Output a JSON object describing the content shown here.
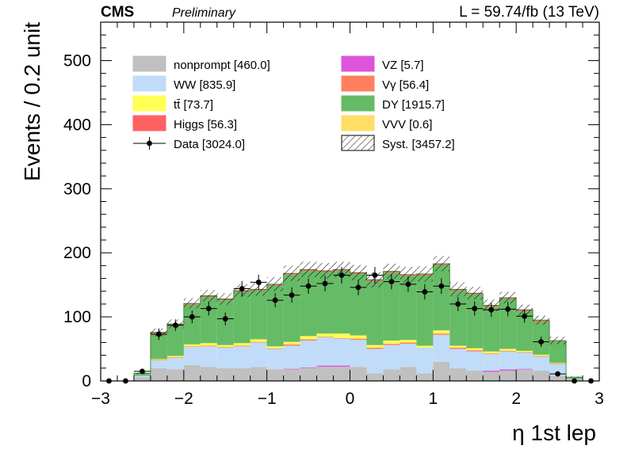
{
  "header": {
    "experiment": "CMS",
    "status": "Preliminary",
    "lumi": "L = 59.74/fb (13 TeV)"
  },
  "chart_data": {
    "type": "bar",
    "stacked": true,
    "xlabel": "η 1st lep",
    "ylabel": "Events / 0.2 unit",
    "xlim": [
      -3,
      3
    ],
    "ylim": [
      0,
      560
    ],
    "x_ticks": [
      -3,
      -2,
      -1,
      0,
      1,
      2,
      3
    ],
    "y_ticks": [
      0,
      100,
      200,
      300,
      400,
      500
    ],
    "legend_position": "top",
    "bin_edges": [
      -3.0,
      -2.8,
      -2.6,
      -2.4,
      -2.2,
      -2.0,
      -1.8,
      -1.6,
      -1.4,
      -1.2,
      -1.0,
      -0.8,
      -0.6,
      -0.4,
      -0.2,
      0.0,
      0.2,
      0.4,
      0.6,
      0.8,
      1.0,
      1.2,
      1.4,
      1.6,
      1.8,
      2.0,
      2.2,
      2.4,
      2.6,
      2.8,
      3.0
    ],
    "legend": [
      {
        "key": "nonprompt",
        "label": "nonprompt [460.0]",
        "color": "#c0c0c0",
        "kind": "fill"
      },
      {
        "key": "VZ",
        "label": "VZ [5.7]",
        "color": "#dd55dd",
        "kind": "fill"
      },
      {
        "key": "WW",
        "label": "WW [835.9]",
        "color": "#c0dcf8",
        "kind": "fill"
      },
      {
        "key": "Vg",
        "label": "Vγ [56.4]",
        "color": "#ff8060",
        "kind": "fill"
      },
      {
        "key": "tt",
        "label": "tt̄ [73.7]",
        "color": "#ffff55",
        "kind": "fill"
      },
      {
        "key": "DY",
        "label": "DY [1915.7]",
        "color": "#66bb66",
        "kind": "fill"
      },
      {
        "key": "Higgs",
        "label": "Higgs [56.3]",
        "color": "#ff6060",
        "kind": "fill"
      },
      {
        "key": "VVV",
        "label": "VVV [0.6]",
        "color": "#ffdd66",
        "kind": "fill"
      },
      {
        "key": "Data",
        "label": "Data [3024.0]",
        "color": "#000000",
        "kind": "marker"
      },
      {
        "key": "Syst",
        "label": "Syst. [3457.2]",
        "color": "#000000",
        "kind": "hatch"
      }
    ],
    "stack_order": [
      "nonprompt",
      "VZ",
      "WW",
      "Vg",
      "tt",
      "DY",
      "VVV",
      "Higgs"
    ],
    "series": [
      {
        "name": "nonprompt",
        "color": "#c0c0c0",
        "values": [
          0,
          0,
          6,
          20,
          18,
          25,
          22,
          20,
          20,
          22,
          18,
          18,
          20,
          22,
          22,
          22,
          12,
          18,
          22,
          12,
          30,
          20,
          16,
          14,
          16,
          18,
          16,
          8,
          2,
          0
        ]
      },
      {
        "name": "VZ",
        "color": "#dd55dd",
        "values": [
          0,
          0,
          0,
          0,
          0,
          0,
          0,
          0,
          0,
          0,
          0,
          1,
          1,
          2,
          2,
          0,
          0,
          0,
          0,
          0,
          0,
          0,
          0,
          2,
          2,
          1,
          0,
          0,
          0,
          0
        ]
      },
      {
        "name": "WW",
        "color": "#c0dcf8",
        "values": [
          0,
          0,
          2,
          12,
          18,
          28,
          32,
          32,
          34,
          38,
          32,
          36,
          42,
          44,
          42,
          42,
          38,
          38,
          36,
          40,
          42,
          30,
          30,
          26,
          28,
          25,
          22,
          18,
          1,
          0
        ]
      },
      {
        "name": "Vg",
        "color": "#ff8060",
        "values": [
          0,
          0,
          0,
          1,
          1,
          1,
          1,
          1,
          1,
          1,
          1,
          2,
          2,
          1,
          1,
          2,
          2,
          2,
          2,
          0,
          2,
          2,
          2,
          1,
          1,
          1,
          1,
          1,
          0,
          0
        ]
      },
      {
        "name": "tt",
        "color": "#ffff55",
        "values": [
          0,
          0,
          0,
          1,
          2,
          3,
          4,
          3,
          4,
          4,
          3,
          4,
          5,
          5,
          7,
          5,
          4,
          5,
          4,
          3,
          5,
          3,
          3,
          3,
          3,
          2,
          2,
          1,
          0,
          0
        ]
      },
      {
        "name": "DY",
        "color": "#66bb66",
        "values": [
          0,
          0,
          4,
          40,
          48,
          62,
          72,
          70,
          80,
          76,
          95,
          105,
          102,
          96,
          98,
          96,
          100,
          106,
          100,
          110,
          102,
          86,
          84,
          70,
          78,
          62,
          52,
          34,
          3,
          0
        ]
      },
      {
        "name": "VVV",
        "color": "#ffdd66",
        "values": [
          0,
          0,
          0,
          0,
          0,
          0,
          0,
          0,
          0,
          0,
          0,
          0,
          0,
          0,
          0,
          0,
          0,
          0,
          0,
          0,
          0,
          0,
          0,
          0,
          0,
          0,
          0,
          0,
          0,
          0
        ]
      },
      {
        "name": "Higgs",
        "color": "#ff6060",
        "values": [
          0,
          0,
          0,
          2,
          2,
          2,
          2,
          2,
          2,
          2,
          2,
          2,
          2,
          2,
          2,
          2,
          2,
          2,
          2,
          2,
          2,
          2,
          2,
          2,
          2,
          2,
          2,
          1,
          0,
          0
        ]
      }
    ],
    "syst_band": [
      0,
      0,
      1.5,
      6,
      7,
      8,
      9,
      9,
      10,
      10,
      11,
      12,
      12,
      12,
      12,
      12,
      12,
      12,
      12,
      12,
      12,
      11,
      10,
      9,
      9,
      8,
      7,
      6,
      1,
      0
    ],
    "data": [
      {
        "x": -2.9,
        "y": 0,
        "err": 0
      },
      {
        "x": -2.7,
        "y": 0,
        "err": 0
      },
      {
        "x": -2.5,
        "y": 15,
        "err": 4
      },
      {
        "x": -2.3,
        "y": 73,
        "err": 9
      },
      {
        "x": -2.1,
        "y": 87,
        "err": 9
      },
      {
        "x": -1.9,
        "y": 100,
        "err": 10
      },
      {
        "x": -1.7,
        "y": 113,
        "err": 11
      },
      {
        "x": -1.5,
        "y": 97,
        "err": 10
      },
      {
        "x": -1.3,
        "y": 144,
        "err": 12
      },
      {
        "x": -1.1,
        "y": 154,
        "err": 12
      },
      {
        "x": -0.9,
        "y": 126,
        "err": 11
      },
      {
        "x": -0.7,
        "y": 134,
        "err": 12
      },
      {
        "x": -0.5,
        "y": 148,
        "err": 12
      },
      {
        "x": -0.3,
        "y": 152,
        "err": 12
      },
      {
        "x": -0.1,
        "y": 165,
        "err": 13
      },
      {
        "x": 0.1,
        "y": 146,
        "err": 12
      },
      {
        "x": 0.3,
        "y": 165,
        "err": 13
      },
      {
        "x": 0.5,
        "y": 155,
        "err": 12
      },
      {
        "x": 0.7,
        "y": 151,
        "err": 12
      },
      {
        "x": 0.9,
        "y": 139,
        "err": 12
      },
      {
        "x": 1.1,
        "y": 148,
        "err": 12
      },
      {
        "x": 1.3,
        "y": 120,
        "err": 11
      },
      {
        "x": 1.5,
        "y": 113,
        "err": 11
      },
      {
        "x": 1.7,
        "y": 111,
        "err": 11
      },
      {
        "x": 1.9,
        "y": 112,
        "err": 11
      },
      {
        "x": 2.1,
        "y": 101,
        "err": 10
      },
      {
        "x": 2.3,
        "y": 61,
        "err": 8
      },
      {
        "x": 2.5,
        "y": 11,
        "err": 3
      },
      {
        "x": 2.7,
        "y": 0,
        "err": 0
      },
      {
        "x": 2.9,
        "y": 0,
        "err": 0
      }
    ]
  }
}
